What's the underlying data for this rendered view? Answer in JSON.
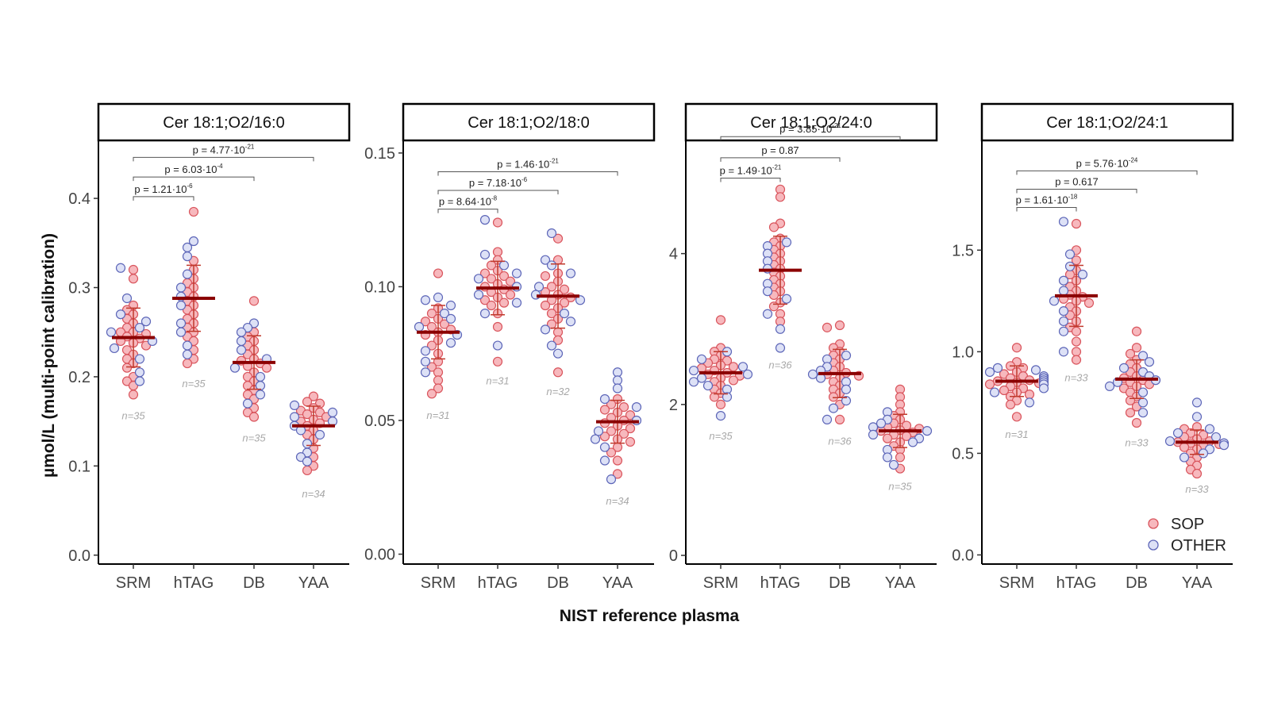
{
  "figure": {
    "xlabel": "NIST reference plasma",
    "ylabel": "µmol/L (multi-point calibration)"
  },
  "legend": {
    "items": [
      {
        "label": "SOP",
        "fill": "#f7b8bd",
        "stroke": "#d9545c"
      },
      {
        "label": "OTHER",
        "fill": "#dde1f6",
        "stroke": "#5d66b8"
      }
    ]
  },
  "colors": {
    "sop_fill": "#f7b8bd",
    "sop_stroke": "#d9545c",
    "other_fill": "#dde1f6",
    "other_stroke": "#5d66b8",
    "mean_bar": "#8b0000",
    "error_bar": "#c0392b",
    "bracket": "#555555",
    "n_label": "#a8a8a8"
  },
  "chart_data": [
    {
      "type": "scatter",
      "title": "Cer 18:1;O2/16:0",
      "categories": [
        "SRM",
        "hTAG",
        "DB",
        "YAA"
      ],
      "ylim": [
        -0.01,
        0.465
      ],
      "yticks": [
        "0.0",
        "0.1",
        "0.2",
        "0.3",
        "0.4"
      ],
      "ytick_values": [
        0.0,
        0.1,
        0.2,
        0.3,
        0.4
      ],
      "means": [
        0.244,
        0.288,
        0.216,
        0.145
      ],
      "sd": [
        0.033,
        0.037,
        0.03,
        0.022
      ],
      "n": [
        35,
        35,
        35,
        34
      ],
      "n_labels": [
        "n=35",
        "n=35",
        "n=35",
        "n=34"
      ],
      "n_label_y": [
        0.157,
        0.193,
        0.132,
        0.069
      ],
      "comparisons": [
        {
          "from": "SRM",
          "to": "hTAG",
          "base": "p = 1.21·10",
          "exp": "-6",
          "y": 0.402
        },
        {
          "from": "SRM",
          "to": "DB",
          "base": "p = 6.03·10",
          "exp": "-4",
          "y": 0.424
        },
        {
          "from": "SRM",
          "to": "YAA",
          "base": "p = 4.77·10",
          "exp": "-21",
          "y": 0.446
        }
      ],
      "series": [
        {
          "name": "SOP",
          "points": {
            "SRM": [
              0.32,
              0.31,
              0.28,
              0.275,
              0.27,
              0.265,
              0.26,
              0.255,
              0.25,
              0.25,
              0.248,
              0.245,
              0.243,
              0.24,
              0.238,
              0.235,
              0.23,
              0.225,
              0.22,
              0.215,
              0.21,
              0.2,
              0.195,
              0.19,
              0.18
            ],
            "hTAG": [
              0.385,
              0.33,
              0.32,
              0.31,
              0.305,
              0.3,
              0.295,
              0.29,
              0.285,
              0.28,
              0.275,
              0.27,
              0.265,
              0.26,
              0.255,
              0.25,
              0.245,
              0.24,
              0.23,
              0.22,
              0.215
            ],
            "DB": [
              0.285,
              0.25,
              0.245,
              0.24,
              0.235,
              0.23,
              0.225,
              0.22,
              0.218,
              0.215,
              0.212,
              0.21,
              0.205,
              0.2,
              0.195,
              0.19,
              0.185,
              0.18,
              0.175,
              0.165,
              0.16,
              0.155
            ],
            "YAA": [
              0.178,
              0.172,
              0.17,
              0.165,
              0.162,
              0.16,
              0.158,
              0.155,
              0.152,
              0.15,
              0.148,
              0.145,
              0.14,
              0.135,
              0.13,
              0.12,
              0.11,
              0.1,
              0.095
            ]
          }
        },
        {
          "name": "OTHER",
          "points": {
            "SRM": [
              0.322,
              0.288,
              0.27,
              0.262,
              0.255,
              0.25,
              0.24,
              0.232,
              0.22,
              0.205,
              0.195
            ],
            "hTAG": [
              0.352,
              0.345,
              0.335,
              0.315,
              0.3,
              0.29,
              0.28,
              0.26,
              0.25,
              0.235,
              0.225
            ],
            "DB": [
              0.26,
              0.255,
              0.25,
              0.24,
              0.23,
              0.22,
              0.21,
              0.2,
              0.19,
              0.18,
              0.17
            ],
            "YAA": [
              0.168,
              0.16,
              0.155,
              0.15,
              0.145,
              0.14,
              0.135,
              0.125,
              0.115,
              0.11,
              0.105
            ]
          }
        }
      ]
    },
    {
      "type": "scatter",
      "title": "Cer 18:1;O2/18:0",
      "categories": [
        "SRM",
        "hTAG",
        "DB",
        "YAA"
      ],
      "ylim": [
        -0.0037,
        0.1547
      ],
      "yticks": [
        "0.00",
        "0.05",
        "0.10",
        "0.15"
      ],
      "ytick_values": [
        0.0,
        0.05,
        0.1,
        0.15
      ],
      "means": [
        0.083,
        0.0995,
        0.0965,
        0.0495
      ],
      "sd": [
        0.01,
        0.01,
        0.012,
        0.008
      ],
      "n": [
        31,
        31,
        32,
        34
      ],
      "n_labels": [
        "n=31",
        "n=31",
        "n=32",
        "n=34"
      ],
      "n_label_y": [
        0.052,
        0.065,
        0.061,
        0.02
      ],
      "comparisons": [
        {
          "from": "SRM",
          "to": "hTAG",
          "base": "p = 8.64·10",
          "exp": "-8",
          "y": 0.129
        },
        {
          "from": "SRM",
          "to": "DB",
          "base": "p = 7.18·10",
          "exp": "-6",
          "y": 0.136
        },
        {
          "from": "SRM",
          "to": "YAA",
          "base": "p = 1.46·10",
          "exp": "-21",
          "y": 0.143
        }
      ],
      "series": [
        {
          "name": "SOP",
          "points": {
            "SRM": [
              0.105,
              0.092,
              0.09,
              0.088,
              0.087,
              0.086,
              0.085,
              0.084,
              0.083,
              0.082,
              0.08,
              0.078,
              0.075,
              0.072,
              0.07,
              0.068,
              0.065,
              0.062,
              0.06
            ],
            "hTAG": [
              0.124,
              0.113,
              0.11,
              0.108,
              0.106,
              0.105,
              0.104,
              0.103,
              0.102,
              0.101,
              0.1,
              0.099,
              0.098,
              0.097,
              0.096,
              0.095,
              0.094,
              0.093,
              0.09,
              0.085,
              0.072
            ],
            "DB": [
              0.118,
              0.11,
              0.105,
              0.104,
              0.102,
              0.1,
              0.099,
              0.098,
              0.097,
              0.096,
              0.095,
              0.094,
              0.093,
              0.092,
              0.09,
              0.088,
              0.086,
              0.083,
              0.08,
              0.068
            ],
            "YAA": [
              0.058,
              0.056,
              0.055,
              0.054,
              0.053,
              0.052,
              0.051,
              0.05,
              0.049,
              0.048,
              0.047,
              0.046,
              0.045,
              0.044,
              0.043,
              0.042,
              0.04,
              0.038,
              0.035,
              0.03
            ]
          }
        },
        {
          "name": "OTHER",
          "points": {
            "SRM": [
              0.096,
              0.095,
              0.093,
              0.09,
              0.088,
              0.085,
              0.082,
              0.079,
              0.076,
              0.072,
              0.068
            ],
            "hTAG": [
              0.125,
              0.112,
              0.108,
              0.105,
              0.103,
              0.1,
              0.097,
              0.094,
              0.09,
              0.078
            ],
            "DB": [
              0.12,
              0.11,
              0.108,
              0.105,
              0.1,
              0.097,
              0.095,
              0.09,
              0.087,
              0.084,
              0.078,
              0.075
            ],
            "YAA": [
              0.068,
              0.065,
              0.062,
              0.058,
              0.055,
              0.05,
              0.046,
              0.043,
              0.04,
              0.035,
              0.028
            ]
          }
        }
      ]
    },
    {
      "type": "scatter",
      "title": "Cer 18:1;O2/24:0",
      "categories": [
        "SRM",
        "hTAG",
        "DB",
        "YAA"
      ],
      "ylim": [
        -0.115,
        5.5
      ],
      "yticks": [
        "0",
        "2",
        "4"
      ],
      "ytick_values": [
        0,
        2,
        4
      ],
      "means": [
        2.42,
        3.78,
        2.41,
        1.65
      ],
      "sd": [
        0.28,
        0.45,
        0.32,
        0.22
      ],
      "n": [
        35,
        36,
        36,
        35
      ],
      "n_labels": [
        "n=35",
        "n=36",
        "n=36",
        "n=35"
      ],
      "n_label_y": [
        1.59,
        2.53,
        1.52,
        0.92
      ],
      "comparisons": [
        {
          "from": "SRM",
          "to": "hTAG",
          "base": "p = 1.49·10",
          "exp": "-21",
          "y": 5.0
        },
        {
          "from": "SRM",
          "to": "DB",
          "base": "p = 0.87",
          "exp": "",
          "y": 5.27
        },
        {
          "from": "SRM",
          "to": "YAA",
          "base": "p = 3.85·10",
          "exp": "-21",
          "y": 5.55
        }
      ],
      "series": [
        {
          "name": "SOP",
          "points": {
            "SRM": [
              3.12,
              2.75,
              2.7,
              2.65,
              2.6,
              2.58,
              2.55,
              2.52,
              2.5,
              2.48,
              2.45,
              2.42,
              2.4,
              2.38,
              2.35,
              2.32,
              2.3,
              2.25,
              2.2,
              2.15,
              2.1,
              2.0
            ],
            "hTAG": [
              4.85,
              4.75,
              4.4,
              4.35,
              4.2,
              4.15,
              4.1,
              4.05,
              4.0,
              3.95,
              3.9,
              3.85,
              3.8,
              3.75,
              3.7,
              3.65,
              3.6,
              3.55,
              3.5,
              3.45,
              3.35,
              3.3,
              3.2,
              3.1
            ],
            "DB": [
              3.05,
              3.02,
              2.8,
              2.75,
              2.7,
              2.65,
              2.6,
              2.55,
              2.5,
              2.45,
              2.42,
              2.4,
              2.38,
              2.35,
              2.3,
              2.25,
              2.2,
              2.15,
              2.1,
              2.0,
              1.8
            ],
            "YAA": [
              2.2,
              2.1,
              2.0,
              1.9,
              1.85,
              1.8,
              1.75,
              1.72,
              1.7,
              1.68,
              1.66,
              1.65,
              1.63,
              1.6,
              1.58,
              1.55,
              1.5,
              1.45,
              1.4,
              1.3,
              1.15
            ]
          }
        },
        {
          "name": "OTHER",
          "points": {
            "SRM": [
              2.7,
              2.6,
              2.5,
              2.45,
              2.4,
              2.35,
              2.3,
              2.25,
              2.2,
              2.1,
              1.85
            ],
            "hTAG": [
              4.15,
              4.1,
              4.0,
              3.9,
              3.8,
              3.6,
              3.5,
              3.4,
              3.2,
              3.0,
              2.75
            ],
            "DB": [
              2.65,
              2.6,
              2.5,
              2.45,
              2.4,
              2.35,
              2.3,
              2.2,
              2.05,
              1.95,
              1.8
            ],
            "YAA": [
              1.9,
              1.8,
              1.75,
              1.7,
              1.65,
              1.6,
              1.55,
              1.5,
              1.4,
              1.3,
              1.2
            ]
          }
        }
      ]
    },
    {
      "type": "scatter",
      "title": "Cer 18:1;O2/24:1",
      "categories": [
        "SRM",
        "hTAG",
        "DB",
        "YAA"
      ],
      "ylim": [
        -0.045,
        2.04
      ],
      "yticks": [
        "0.0",
        "0.5",
        "1.0",
        "1.5"
      ],
      "ytick_values": [
        0.0,
        0.5,
        1.0,
        1.5
      ],
      "means": [
        0.855,
        1.275,
        0.865,
        0.555
      ],
      "sd": [
        0.075,
        0.15,
        0.095,
        0.06
      ],
      "n": [
        31,
        33,
        33,
        33
      ],
      "n_labels": [
        "n=31",
        "n=33",
        "n=33",
        "n=33"
      ],
      "n_label_y": [
        0.595,
        0.875,
        0.555,
        0.325
      ],
      "comparisons": [
        {
          "from": "SRM",
          "to": "hTAG",
          "base": "p = 1.61·10",
          "exp": "-18",
          "y": 1.71
        },
        {
          "from": "SRM",
          "to": "DB",
          "base": "p = 0.617",
          "exp": "",
          "y": 1.8
        },
        {
          "from": "SRM",
          "to": "YAA",
          "base": "p = 5.76·10",
          "exp": "-24",
          "y": 1.89
        }
      ],
      "series": [
        {
          "name": "SOP",
          "points": {
            "SRM": [
              1.02,
              0.95,
              0.93,
              0.92,
              0.9,
              0.89,
              0.88,
              0.87,
              0.86,
              0.855,
              0.85,
              0.845,
              0.84,
              0.83,
              0.82,
              0.81,
              0.8,
              0.79,
              0.78,
              0.76,
              0.74,
              0.68
            ],
            "hTAG": [
              1.63,
              1.5,
              1.45,
              1.4,
              1.38,
              1.35,
              1.32,
              1.3,
              1.28,
              1.27,
              1.26,
              1.25,
              1.24,
              1.22,
              1.2,
              1.18,
              1.15,
              1.12,
              1.1,
              1.05,
              1.0,
              0.96
            ],
            "DB": [
              1.1,
              1.02,
              0.99,
              0.96,
              0.94,
              0.92,
              0.9,
              0.88,
              0.87,
              0.86,
              0.85,
              0.84,
              0.83,
              0.82,
              0.8,
              0.78,
              0.76,
              0.73,
              0.7,
              0.65
            ],
            "YAA": [
              0.63,
              0.62,
              0.6,
              0.59,
              0.58,
              0.57,
              0.56,
              0.555,
              0.55,
              0.545,
              0.54,
              0.53,
              0.52,
              0.5,
              0.48,
              0.46,
              0.44,
              0.42,
              0.4
            ]
          }
        },
        {
          "name": "OTHER",
          "points": {
            "SRM": [
              0.92,
              0.91,
              0.9,
              0.88,
              0.87,
              0.86,
              0.85,
              0.84,
              0.82,
              0.8,
              0.75
            ],
            "hTAG": [
              1.64,
              1.48,
              1.42,
              1.38,
              1.35,
              1.3,
              1.25,
              1.2,
              1.15,
              1.1,
              1.0
            ],
            "DB": [
              0.98,
              0.95,
              0.92,
              0.9,
              0.88,
              0.86,
              0.85,
              0.83,
              0.8,
              0.75,
              0.7
            ],
            "YAA": [
              0.75,
              0.68,
              0.62,
              0.6,
              0.58,
              0.56,
              0.55,
              0.54,
              0.52,
              0.5,
              0.48
            ]
          }
        }
      ]
    }
  ]
}
